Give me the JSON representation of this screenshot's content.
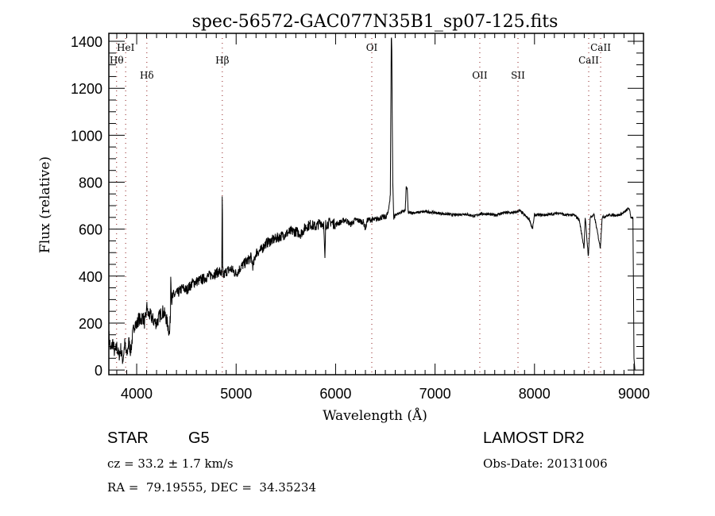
{
  "chart_data": {
    "type": "line",
    "title": "spec-56572-GAC077N35B1_sp07-125.fits",
    "xlabel": "Wavelength (Å)",
    "ylabel": "Flux (relative)",
    "xlim": [
      3720,
      9096
    ],
    "ylim": [
      -20,
      1434
    ],
    "xticks": [
      4000,
      5000,
      6000,
      7000,
      8000,
      9000
    ],
    "yticks": [
      0,
      200,
      400,
      600,
      800,
      1000,
      1200,
      1400
    ],
    "grid": false,
    "line_markers": [
      {
        "label": "Hθ",
        "wavelength": 3798,
        "row": 2
      },
      {
        "label": "HeI",
        "wavelength": 3889,
        "row": 1
      },
      {
        "label": "Hδ",
        "wavelength": 4102,
        "row": 3
      },
      {
        "label": "Hβ",
        "wavelength": 4861,
        "row": 2
      },
      {
        "label": "OI",
        "wavelength": 6364,
        "row": 1
      },
      {
        "label": "OII",
        "wavelength": 7450,
        "row": 3
      },
      {
        "label": "SII",
        "wavelength": 7834,
        "row": 3
      },
      {
        "label": "CaII",
        "wavelength": 8545,
        "row": 2
      },
      {
        "label": "CaII",
        "wavelength": 8665,
        "row": 1
      }
    ],
    "series": [
      {
        "name": "spectrum",
        "points": [
          [
            3720,
            150
          ],
          [
            3740,
            80
          ],
          [
            3760,
            120
          ],
          [
            3780,
            70
          ],
          [
            3800,
            100
          ],
          [
            3820,
            60
          ],
          [
            3840,
            90
          ],
          [
            3860,
            40
          ],
          [
            3880,
            110
          ],
          [
            3900,
            60
          ],
          [
            3920,
            120
          ],
          [
            3940,
            80
          ],
          [
            3960,
            150
          ],
          [
            3980,
            200
          ],
          [
            4000,
            190
          ],
          [
            4020,
            220
          ],
          [
            4040,
            210
          ],
          [
            4060,
            230
          ],
          [
            4080,
            200
          ],
          [
            4100,
            250
          ],
          [
            4102,
            300
          ],
          [
            4110,
            240
          ],
          [
            4140,
            230
          ],
          [
            4170,
            210
          ],
          [
            4200,
            200
          ],
          [
            4230,
            230
          ],
          [
            4260,
            250
          ],
          [
            4290,
            230
          ],
          [
            4320,
            180
          ],
          [
            4330,
            150
          ],
          [
            4340,
            250
          ],
          [
            4343,
            440
          ],
          [
            4350,
            300
          ],
          [
            4380,
            320
          ],
          [
            4420,
            330
          ],
          [
            4460,
            350
          ],
          [
            4500,
            340
          ],
          [
            4560,
            370
          ],
          [
            4620,
            380
          ],
          [
            4680,
            390
          ],
          [
            4720,
            400
          ],
          [
            4780,
            410
          ],
          [
            4840,
            420
          ],
          [
            4855,
            400
          ],
          [
            4861,
            790
          ],
          [
            4865,
            430
          ],
          [
            4870,
            400
          ],
          [
            4900,
            420
          ],
          [
            4950,
            430
          ],
          [
            5000,
            410
          ],
          [
            5050,
            440
          ],
          [
            5100,
            460
          ],
          [
            5150,
            480
          ],
          [
            5170,
            440
          ],
          [
            5200,
            500
          ],
          [
            5250,
            510
          ],
          [
            5300,
            540
          ],
          [
            5350,
            550
          ],
          [
            5400,
            560
          ],
          [
            5450,
            570
          ],
          [
            5500,
            580
          ],
          [
            5550,
            590
          ],
          [
            5600,
            590
          ],
          [
            5650,
            580
          ],
          [
            5700,
            610
          ],
          [
            5750,
            620
          ],
          [
            5800,
            610
          ],
          [
            5850,
            630
          ],
          [
            5880,
            620
          ],
          [
            5893,
            460
          ],
          [
            5900,
            620
          ],
          [
            5950,
            630
          ],
          [
            6000,
            620
          ],
          [
            6050,
            630
          ],
          [
            6100,
            640
          ],
          [
            6150,
            620
          ],
          [
            6200,
            640
          ],
          [
            6280,
            630
          ],
          [
            6300,
            600
          ],
          [
            6320,
            640
          ],
          [
            6400,
            640
          ],
          [
            6450,
            650
          ],
          [
            6500,
            650
          ],
          [
            6530,
            670
          ],
          [
            6550,
            750
          ],
          [
            6560,
            1400
          ],
          [
            6564,
            1440
          ],
          [
            6568,
            1150
          ],
          [
            6575,
            800
          ],
          [
            6585,
            650
          ],
          [
            6600,
            660
          ],
          [
            6650,
            670
          ],
          [
            6700,
            680
          ],
          [
            6710,
            780
          ],
          [
            6720,
            770
          ],
          [
            6730,
            670
          ],
          [
            6800,
            670
          ],
          [
            6900,
            675
          ],
          [
            7000,
            670
          ],
          [
            7100,
            665
          ],
          [
            7200,
            660
          ],
          [
            7300,
            665
          ],
          [
            7400,
            655
          ],
          [
            7450,
            665
          ],
          [
            7500,
            665
          ],
          [
            7600,
            660
          ],
          [
            7700,
            670
          ],
          [
            7800,
            670
          ],
          [
            7850,
            680
          ],
          [
            7900,
            660
          ],
          [
            7950,
            640
          ],
          [
            7980,
            600
          ],
          [
            8000,
            660
          ],
          [
            8100,
            660
          ],
          [
            8200,
            665
          ],
          [
            8250,
            670
          ],
          [
            8300,
            660
          ],
          [
            8400,
            660
          ],
          [
            8450,
            640
          ],
          [
            8498,
            520
          ],
          [
            8510,
            650
          ],
          [
            8542,
            480
          ],
          [
            8560,
            650
          ],
          [
            8600,
            660
          ],
          [
            8662,
            520
          ],
          [
            8680,
            650
          ],
          [
            8750,
            660
          ],
          [
            8850,
            660
          ],
          [
            8900,
            670
          ],
          [
            8950,
            690
          ],
          [
            8970,
            650
          ],
          [
            8990,
            650
          ],
          [
            9000,
            50
          ],
          [
            9010,
            0
          ]
        ]
      }
    ]
  },
  "info": {
    "object_class": "STAR",
    "subclass": "G5",
    "cz": "cz = 33.2 ± 1.7 km/s",
    "coords": "RA =  79.19555, DEC =  34.35234",
    "survey": "LAMOST DR2",
    "obs_date": "Obs-Date: 20131006"
  }
}
